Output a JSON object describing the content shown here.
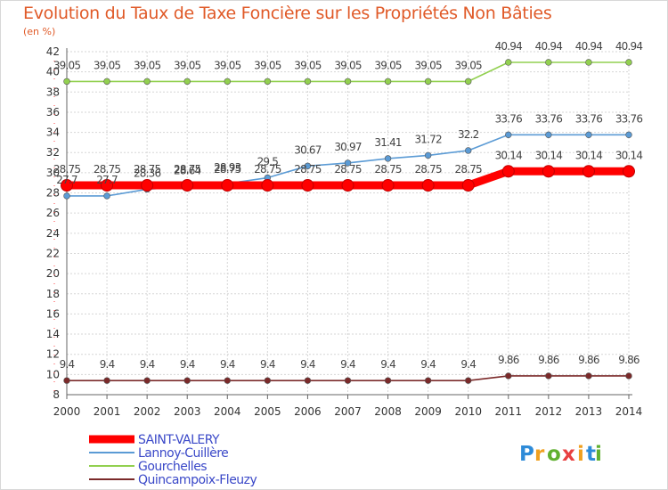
{
  "chart_data": {
    "type": "line",
    "title": "Evolution du Taux de Taxe Foncière sur les Propriétés Non Bâties",
    "subtitle": "(en %)",
    "xlabel": "",
    "ylabel": "(en %)",
    "categories": [
      "2000",
      "2001",
      "2002",
      "2003",
      "2004",
      "2005",
      "2006",
      "2007",
      "2008",
      "2009",
      "2010",
      "2011",
      "2012",
      "2013",
      "2014"
    ],
    "yticks": [
      "8",
      "10",
      "12",
      "14",
      "16",
      "18",
      "20",
      "22",
      "24",
      "26",
      "28",
      "30",
      "32",
      "34",
      "36",
      "38",
      "40",
      "42"
    ],
    "ylim": [
      8,
      42
    ],
    "grid": true,
    "legend_position": "bottom-left",
    "series": [
      {
        "name": "SAINT-VALERY",
        "color": "#ff0000",
        "values": [
          28.75,
          28.75,
          28.75,
          28.75,
          28.75,
          28.75,
          28.75,
          28.75,
          28.75,
          28.75,
          28.75,
          30.14,
          30.14,
          30.14,
          30.14
        ],
        "labels": [
          "28.75",
          "28.75",
          "28.75",
          "28.75",
          "28.75",
          "28.75",
          "28.75",
          "28.75",
          "28.75",
          "28.75",
          "28.75",
          "30.14",
          "30.14",
          "30.14",
          "30.14"
        ]
      },
      {
        "name": "Lannoy-Cuillère",
        "color": "#5b9bd5",
        "values": [
          27.7,
          27.7,
          28.36,
          28.64,
          28.93,
          29.5,
          30.67,
          30.97,
          31.41,
          31.72,
          32.2,
          33.76,
          33.76,
          33.76,
          33.76
        ],
        "labels": [
          "27.7",
          "27.7",
          "28.36",
          "28.64",
          "28.93",
          "29.5",
          "30.67",
          "30.97",
          "31.41",
          "31.72",
          "32.2",
          "33.76",
          "33.76",
          "33.76",
          "33.76"
        ]
      },
      {
        "name": "Gourchelles",
        "color": "#92d050",
        "values": [
          39.05,
          39.05,
          39.05,
          39.05,
          39.05,
          39.05,
          39.05,
          39.05,
          39.05,
          39.05,
          39.05,
          40.94,
          40.94,
          40.94,
          40.94
        ],
        "labels": [
          "39.05",
          "39.05",
          "39.05",
          "39.05",
          "39.05",
          "39.05",
          "39.05",
          "39.05",
          "39.05",
          "39.05",
          "39.05",
          "40.94",
          "40.94",
          "40.94",
          "40.94"
        ]
      },
      {
        "name": "Quincampoix-Fleuzy",
        "color": "#7b2a2a",
        "values": [
          9.4,
          9.4,
          9.4,
          9.4,
          9.4,
          9.4,
          9.4,
          9.4,
          9.4,
          9.4,
          9.4,
          9.86,
          9.86,
          9.86,
          9.86
        ],
        "labels": [
          "9.4",
          "9.4",
          "9.4",
          "9.4",
          "9.4",
          "9.4",
          "9.4",
          "9.4",
          "9.4",
          "9.4",
          "9.4",
          "9.86",
          "9.86",
          "9.86",
          "9.86"
        ]
      }
    ]
  },
  "brand": {
    "letters": [
      "P",
      "r",
      "o",
      "x",
      "i",
      "t",
      "i"
    ],
    "colors": [
      "#2e8bd8",
      "#f0a020",
      "#60b030",
      "#e84040",
      "#f0a020",
      "#2e8bd8",
      "#60b030"
    ]
  }
}
